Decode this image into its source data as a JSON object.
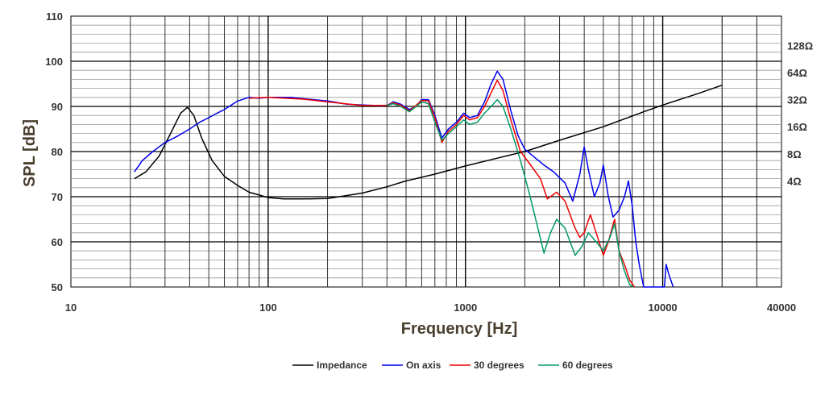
{
  "chart_data": {
    "type": "line",
    "xlabel": "Frequency [Hz]",
    "ylabel": "SPL [dB]",
    "x_scale": "log",
    "xlim": [
      10,
      40000
    ],
    "ylim": [
      50,
      110
    ],
    "grid": true,
    "legend_position": "bottom-center",
    "x_ticks": [
      10,
      100,
      1000,
      10000,
      40000
    ],
    "x_tick_labels": [
      "10",
      "100",
      "1000",
      "10000",
      "40000"
    ],
    "y_ticks": [
      50,
      60,
      70,
      80,
      90,
      100,
      110
    ],
    "y_tick_labels": [
      "50",
      "60",
      "70",
      "80",
      "90",
      "100",
      "110"
    ],
    "right_axis": {
      "label": "",
      "ticks": [
        {
          "label": "4Ω",
          "spl": 73.5
        },
        {
          "label": "8Ω",
          "spl": 79.5
        },
        {
          "label": "16Ω",
          "spl": 85.5
        },
        {
          "label": "32Ω",
          "spl": 91.5
        },
        {
          "label": "64Ω",
          "spl": 97.5
        },
        {
          "label": "128Ω",
          "spl": 103.5
        }
      ]
    },
    "series": [
      {
        "name": "Impedance",
        "color": "#000000",
        "points": [
          [
            21,
            74
          ],
          [
            24,
            75.5
          ],
          [
            28,
            79
          ],
          [
            32,
            84
          ],
          [
            36,
            88.5
          ],
          [
            39,
            89.8
          ],
          [
            42,
            88
          ],
          [
            46,
            83
          ],
          [
            52,
            78
          ],
          [
            60,
            74.5
          ],
          [
            70,
            72.5
          ],
          [
            80,
            71
          ],
          [
            100,
            69.8
          ],
          [
            120,
            69.5
          ],
          [
            150,
            69.5
          ],
          [
            200,
            69.6
          ],
          [
            300,
            70.8
          ],
          [
            400,
            72.2
          ],
          [
            500,
            73.5
          ],
          [
            700,
            75
          ],
          [
            1000,
            76.8
          ],
          [
            1500,
            78.7
          ],
          [
            2000,
            80
          ],
          [
            3000,
            82.5
          ],
          [
            5000,
            85.5
          ],
          [
            8000,
            88.8
          ],
          [
            10000,
            90.3
          ],
          [
            15000,
            92.8
          ],
          [
            20000,
            94.7
          ]
        ]
      },
      {
        "name": "On axis",
        "color": "#0000ee",
        "points": [
          [
            21,
            75.5
          ],
          [
            23,
            78
          ],
          [
            26,
            80
          ],
          [
            30,
            82
          ],
          [
            35,
            83.5
          ],
          [
            40,
            85
          ],
          [
            45,
            86.5
          ],
          [
            50,
            87.5
          ],
          [
            55,
            88.5
          ],
          [
            60,
            89.3
          ],
          [
            70,
            91.2
          ],
          [
            80,
            92
          ],
          [
            90,
            91.8
          ],
          [
            100,
            92
          ],
          [
            130,
            92
          ],
          [
            160,
            91.6
          ],
          [
            200,
            91.2
          ],
          [
            250,
            90.5
          ],
          [
            300,
            90.3
          ],
          [
            350,
            90.2
          ],
          [
            400,
            90.2
          ],
          [
            430,
            91
          ],
          [
            470,
            90.5
          ],
          [
            520,
            89.3
          ],
          [
            560,
            90
          ],
          [
            600,
            91.5
          ],
          [
            650,
            91.5
          ],
          [
            700,
            88
          ],
          [
            760,
            83
          ],
          [
            820,
            85
          ],
          [
            900,
            86.5
          ],
          [
            980,
            88.5
          ],
          [
            1050,
            87.5
          ],
          [
            1150,
            88
          ],
          [
            1250,
            91
          ],
          [
            1350,
            95
          ],
          [
            1450,
            97.8
          ],
          [
            1550,
            96
          ],
          [
            1700,
            89
          ],
          [
            1850,
            83.5
          ],
          [
            2000,
            80.5
          ],
          [
            2200,
            79
          ],
          [
            2500,
            77
          ],
          [
            2800,
            75.5
          ],
          [
            3200,
            73
          ],
          [
            3500,
            69
          ],
          [
            3800,
            75
          ],
          [
            4000,
            81
          ],
          [
            4200,
            76
          ],
          [
            4500,
            70
          ],
          [
            4800,
            73
          ],
          [
            5000,
            77
          ],
          [
            5300,
            70
          ],
          [
            5600,
            65.5
          ],
          [
            6000,
            67
          ],
          [
            6400,
            70
          ],
          [
            6700,
            73.5
          ],
          [
            7000,
            68
          ],
          [
            7300,
            60
          ],
          [
            7600,
            55
          ],
          [
            8000,
            50
          ],
          [
            10200,
            50
          ],
          [
            10400,
            55
          ],
          [
            10700,
            53
          ],
          [
            11000,
            51.5
          ],
          [
            11300,
            50
          ]
        ]
      },
      {
        "name": "30 degrees",
        "color": "#ee0000",
        "points": [
          [
            80,
            91.8
          ],
          [
            100,
            92
          ],
          [
            150,
            91.6
          ],
          [
            200,
            91
          ],
          [
            300,
            90.2
          ],
          [
            400,
            90.2
          ],
          [
            430,
            90.8
          ],
          [
            470,
            90.3
          ],
          [
            520,
            89
          ],
          [
            600,
            91.3
          ],
          [
            650,
            91.2
          ],
          [
            700,
            87.5
          ],
          [
            760,
            82
          ],
          [
            820,
            84.5
          ],
          [
            900,
            86
          ],
          [
            980,
            88
          ],
          [
            1050,
            87
          ],
          [
            1150,
            87.5
          ],
          [
            1250,
            90
          ],
          [
            1350,
            93
          ],
          [
            1450,
            95.8
          ],
          [
            1550,
            93.5
          ],
          [
            1700,
            87
          ],
          [
            1900,
            80
          ],
          [
            2100,
            77.5
          ],
          [
            2400,
            74
          ],
          [
            2600,
            69.5
          ],
          [
            2900,
            71
          ],
          [
            3200,
            69
          ],
          [
            3600,
            63
          ],
          [
            3800,
            61
          ],
          [
            4000,
            62
          ],
          [
            4300,
            66
          ],
          [
            4600,
            62
          ],
          [
            5000,
            57
          ],
          [
            5300,
            60
          ],
          [
            5700,
            65
          ],
          [
            6000,
            58
          ],
          [
            6400,
            55
          ],
          [
            6800,
            51.5
          ],
          [
            7200,
            50
          ]
        ]
      },
      {
        "name": "60 degrees",
        "color": "#009966",
        "points": [
          [
            400,
            90.2
          ],
          [
            430,
            90.6
          ],
          [
            470,
            90
          ],
          [
            520,
            88.8
          ],
          [
            600,
            91
          ],
          [
            650,
            90.6
          ],
          [
            700,
            86.5
          ],
          [
            760,
            82.5
          ],
          [
            820,
            84
          ],
          [
            900,
            85.5
          ],
          [
            980,
            87
          ],
          [
            1050,
            86
          ],
          [
            1150,
            86.5
          ],
          [
            1250,
            88.5
          ],
          [
            1350,
            90
          ],
          [
            1450,
            91.5
          ],
          [
            1550,
            90
          ],
          [
            1700,
            85
          ],
          [
            1900,
            78
          ],
          [
            2100,
            71
          ],
          [
            2300,
            64
          ],
          [
            2500,
            57.5
          ],
          [
            2700,
            62
          ],
          [
            2900,
            65
          ],
          [
            3200,
            63
          ],
          [
            3600,
            57
          ],
          [
            3900,
            59
          ],
          [
            4200,
            62
          ],
          [
            4600,
            60
          ],
          [
            5000,
            58
          ],
          [
            5400,
            61
          ],
          [
            5700,
            64
          ],
          [
            6000,
            58
          ],
          [
            6400,
            53.5
          ],
          [
            6800,
            50.5
          ],
          [
            7100,
            50
          ]
        ]
      }
    ]
  }
}
